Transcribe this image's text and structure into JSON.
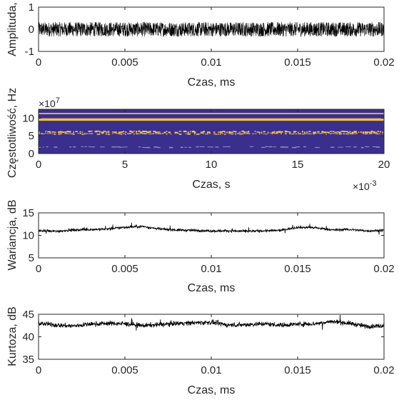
{
  "figure": {
    "background": "#ffffff",
    "axes_color": "#262626",
    "trace_color": "#000000"
  },
  "chart_data": [
    {
      "type": "line",
      "name": "amplitude",
      "title": "",
      "xlabel": "Czas, ms",
      "ylabel": "Amplituda,",
      "xlim": [
        0,
        0.02
      ],
      "ylim": [
        -1,
        1
      ],
      "xticks": [
        "0",
        "0.005",
        "0.01",
        "0.015",
        "0.02"
      ],
      "xtick_values": [
        0,
        0.005,
        0.01,
        0.015,
        0.02
      ],
      "yticks": [
        "-1",
        "0",
        "1"
      ],
      "ytick_values": [
        -1,
        0,
        1
      ],
      "grid": false,
      "signal": {
        "description": "dense noise-like waveform",
        "center": 0,
        "envelope_min": -0.33,
        "envelope_max": 0.33
      }
    },
    {
      "type": "heatmap",
      "name": "spectrogram",
      "title": "",
      "xlabel": "Czas, s",
      "ylabel": "Częstotliwość, Hz",
      "xlim": [
        0,
        20
      ],
      "ylim": [
        0,
        12.5
      ],
      "x_multiplier": "×10-3",
      "x_multiplier_base": "×10",
      "x_multiplier_exp": "-3",
      "y_multiplier": "×10^7",
      "y_multiplier_base": "×10",
      "y_multiplier_exp": "7",
      "xticks": [
        "0",
        "5",
        "10",
        "15",
        "20"
      ],
      "xtick_values": [
        0,
        5,
        10,
        15,
        20
      ],
      "yticks": [
        "0",
        "5",
        "10"
      ],
      "ytick_values": [
        0,
        5,
        10
      ],
      "colors": {
        "background": "#3b2f8d",
        "strong": "#f5c04a",
        "mid": "#c9a85a",
        "faint": "#8f85c8"
      },
      "bands": [
        {
          "f": 11.3,
          "width": 0.35,
          "level": "strong",
          "continuous": true
        },
        {
          "f": 9.6,
          "width": 0.7,
          "level": "strong",
          "continuous": true
        },
        {
          "f": 6.1,
          "width": 0.45,
          "level": "strong",
          "continuous": false
        },
        {
          "f": 5.6,
          "width": 0.35,
          "level": "mid",
          "continuous": false
        },
        {
          "f": 1.8,
          "width": 0.3,
          "level": "faint",
          "continuous": false
        }
      ]
    },
    {
      "type": "line",
      "name": "variance",
      "title": "",
      "xlabel": "Czas, ms",
      "ylabel": "Wariancja, dB",
      "xlim": [
        0,
        0.02
      ],
      "ylim": [
        5,
        15
      ],
      "xticks": [
        "0",
        "0.005",
        "0.01",
        "0.015",
        "0.02"
      ],
      "xtick_values": [
        0,
        0.005,
        0.01,
        0.015,
        0.02
      ],
      "yticks": [
        "5",
        "10",
        "15"
      ],
      "ytick_values": [
        5,
        10,
        15
      ],
      "grid": false,
      "series": [
        {
          "x": [
            0,
            0.001,
            0.002,
            0.003,
            0.004,
            0.005,
            0.006,
            0.007,
            0.008,
            0.009,
            0.01,
            0.011,
            0.012,
            0.013,
            0.014,
            0.015,
            0.016,
            0.017,
            0.018,
            0.019,
            0.02
          ],
          "y": [
            11.0,
            10.9,
            11.2,
            11.3,
            11.4,
            11.8,
            12.0,
            11.4,
            11.2,
            11.1,
            11.0,
            11.0,
            10.9,
            11.0,
            11.1,
            11.8,
            11.7,
            11.2,
            11.3,
            11.0,
            11.1
          ],
          "noise": 0.5
        }
      ]
    },
    {
      "type": "line",
      "name": "kurtosis",
      "title": "",
      "xlabel": "Czas, ms",
      "ylabel": "Kurtoza, dB",
      "xlim": [
        0,
        0.02
      ],
      "ylim": [
        35,
        45
      ],
      "xticks": [
        "0",
        "0.005",
        "0.01",
        "0.015",
        "0.02"
      ],
      "xtick_values": [
        0,
        0.005,
        0.01,
        0.015,
        0.02
      ],
      "yticks": [
        "35",
        "40",
        "45"
      ],
      "ytick_values": [
        35,
        40,
        45
      ],
      "grid": false,
      "series": [
        {
          "x": [
            0,
            0.001,
            0.002,
            0.003,
            0.004,
            0.005,
            0.006,
            0.007,
            0.008,
            0.009,
            0.01,
            0.011,
            0.012,
            0.013,
            0.014,
            0.015,
            0.016,
            0.017,
            0.018,
            0.019,
            0.02
          ],
          "y": [
            43.0,
            42.6,
            42.4,
            42.8,
            43.0,
            42.9,
            42.5,
            42.7,
            43.0,
            43.1,
            43.2,
            42.6,
            42.7,
            42.9,
            42.6,
            42.8,
            42.9,
            43.4,
            43.0,
            42.3,
            42.5
          ],
          "noise": 0.9
        }
      ]
    }
  ]
}
